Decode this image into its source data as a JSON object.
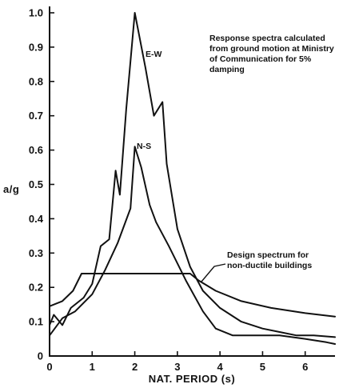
{
  "chart_data": {
    "type": "line",
    "title": "",
    "xlabel": "NAT. PERIOD (s)",
    "ylabel": "a/g",
    "xlim": [
      0,
      6.7
    ],
    "ylim": [
      0,
      1.0
    ],
    "x_ticks": [
      "0",
      "1",
      "2",
      "3",
      "4",
      "5",
      "6"
    ],
    "y_ticks": [
      "0",
      "0.1",
      "0.2",
      "0.3",
      "0.4",
      "0.5",
      "0.6",
      "0.7",
      "0.8",
      "0.9",
      "1.0"
    ],
    "grid": false,
    "series": [
      {
        "name": "E-W",
        "points": [
          [
            0,
            0.09
          ],
          [
            0.1,
            0.12
          ],
          [
            0.3,
            0.09
          ],
          [
            0.5,
            0.14
          ],
          [
            0.8,
            0.17
          ],
          [
            1.0,
            0.21
          ],
          [
            1.2,
            0.32
          ],
          [
            1.4,
            0.34
          ],
          [
            1.55,
            0.54
          ],
          [
            1.65,
            0.47
          ],
          [
            1.8,
            0.72
          ],
          [
            2.0,
            1.0
          ],
          [
            2.25,
            0.84
          ],
          [
            2.45,
            0.7
          ],
          [
            2.65,
            0.74
          ],
          [
            2.75,
            0.56
          ],
          [
            3.0,
            0.37
          ],
          [
            3.3,
            0.26
          ],
          [
            3.6,
            0.19
          ],
          [
            4.0,
            0.14
          ],
          [
            4.5,
            0.1
          ],
          [
            5.0,
            0.08
          ],
          [
            5.4,
            0.07
          ],
          [
            5.8,
            0.06
          ],
          [
            6.2,
            0.06
          ],
          [
            6.7,
            0.055
          ]
        ]
      },
      {
        "name": "N-S",
        "points": [
          [
            0,
            0.06
          ],
          [
            0.3,
            0.11
          ],
          [
            0.6,
            0.13
          ],
          [
            1.0,
            0.18
          ],
          [
            1.3,
            0.25
          ],
          [
            1.6,
            0.33
          ],
          [
            1.9,
            0.43
          ],
          [
            2.0,
            0.61
          ],
          [
            2.15,
            0.55
          ],
          [
            2.35,
            0.44
          ],
          [
            2.5,
            0.39
          ],
          [
            2.8,
            0.32
          ],
          [
            3.2,
            0.22
          ],
          [
            3.6,
            0.13
          ],
          [
            3.9,
            0.08
          ],
          [
            4.3,
            0.06
          ],
          [
            4.8,
            0.06
          ],
          [
            5.4,
            0.06
          ],
          [
            6.0,
            0.05
          ],
          [
            6.5,
            0.04
          ],
          [
            6.7,
            0.035
          ]
        ]
      },
      {
        "name": "Design spectrum",
        "points": [
          [
            0,
            0.145
          ],
          [
            0.3,
            0.16
          ],
          [
            0.55,
            0.19
          ],
          [
            0.75,
            0.24
          ],
          [
            3.3,
            0.24
          ],
          [
            3.5,
            0.22
          ],
          [
            3.9,
            0.19
          ],
          [
            4.5,
            0.16
          ],
          [
            5.2,
            0.14
          ],
          [
            6.0,
            0.125
          ],
          [
            6.7,
            0.115
          ]
        ]
      }
    ],
    "annotations": {
      "ew_label": "E-W",
      "ns_label": "N-S",
      "note_line1": "Response spectra calculated",
      "note_line2": "from ground motion at Ministry",
      "note_line3": "of Communication for 5%",
      "note_line4": "damping",
      "design_line1": "Design spectrum for",
      "design_line2": "non-ductile buildings"
    }
  }
}
